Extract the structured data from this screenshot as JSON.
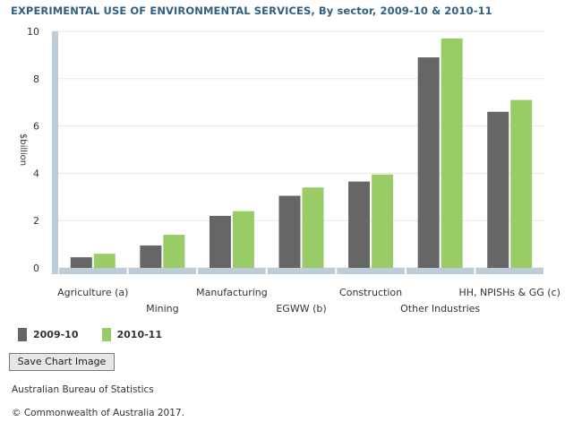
{
  "title": "EXPERIMENTAL USE OF ENVIRONMENTAL SERVICES, By sector, 2009-10 & 2010-11",
  "colors": {
    "series_2009_10": "#666666",
    "series_2010_11": "#99cc66",
    "axis_band": "#bcccd9",
    "title": "#31607f"
  },
  "chart_data": {
    "type": "bar",
    "title": "EXPERIMENTAL USE OF ENVIRONMENTAL SERVICES, By sector, 2009-10 & 2010-11",
    "xlabel": "",
    "ylabel": "$billion",
    "ylim": [
      0,
      10
    ],
    "yticks": [
      "0",
      "2",
      "4",
      "6",
      "8",
      "10"
    ],
    "grid": true,
    "legend_position": "bottom-left",
    "categories": [
      "Agriculture (a)",
      "Mining",
      "Manufacturing",
      "EGWW (b)",
      "Construction",
      "Other Industries",
      "HH, NPISHs & GG (c)"
    ],
    "series": [
      {
        "name": "2009-10",
        "values": [
          0.45,
          0.95,
          2.2,
          3.05,
          3.65,
          8.9,
          6.6
        ]
      },
      {
        "name": "2010-11",
        "values": [
          0.6,
          1.4,
          2.4,
          3.4,
          3.95,
          9.7,
          7.1
        ]
      }
    ]
  },
  "legend": [
    {
      "label": "2009-10",
      "color": "#666666"
    },
    {
      "label": "2010-11",
      "color": "#99cc66"
    }
  ],
  "buttons": {
    "save_chart": "Save Chart Image"
  },
  "footer": {
    "source": "Australian Bureau of Statistics",
    "copyright": "© Commonwealth of Australia 2017."
  }
}
